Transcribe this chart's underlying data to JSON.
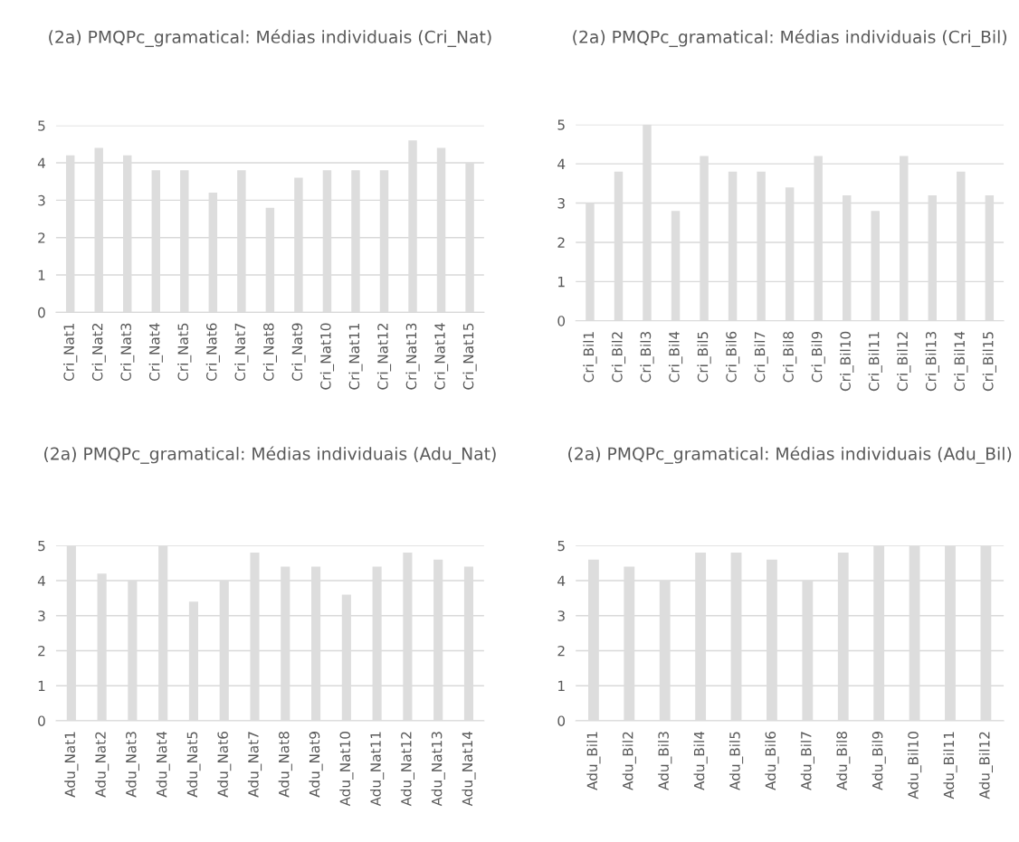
{
  "chart_data": [
    {
      "type": "bar",
      "title": "(2a) PMQPc_gramatical: Médias individuais (Cri_Nat)",
      "categories": [
        "Cri_Nat1",
        "Cri_Nat2",
        "Cri_Nat3",
        "Cri_Nat4",
        "Cri_Nat5",
        "Cri_Nat6",
        "Cri_Nat7",
        "Cri_Nat8",
        "Cri_Nat9",
        "Cri_Nat10",
        "Cri_Nat11",
        "Cri_Nat12",
        "Cri_Nat13",
        "Cri_Nat14",
        "Cri_Nat15"
      ],
      "values": [
        4.2,
        4.4,
        4.2,
        3.8,
        3.8,
        3.2,
        3.8,
        2.8,
        3.6,
        3.8,
        3.8,
        3.8,
        4.6,
        4.4,
        4.0
      ],
      "color": "#dddddd",
      "ylim": [
        0,
        5
      ],
      "yticks": [
        0,
        1,
        2,
        3,
        4,
        5
      ],
      "grid": "y"
    },
    {
      "type": "bar",
      "title": "(2a) PMQPc_gramatical: Médias individuais (Cri_Bil)",
      "categories": [
        "Cri_Bil1",
        "Cri_Bil2",
        "Cri_Bil3",
        "Cri_Bil4",
        "Cri_Bil5",
        "Cri_Bil6",
        "Cri_Bil7",
        "Cri_Bil8",
        "Cri_Bil9",
        "Cri_Bil10",
        "Cri_Bil11",
        "Cri_Bil12",
        "Cri_Bil13",
        "Cri_Bil14",
        "Cri_Bil15"
      ],
      "values": [
        3.0,
        3.8,
        5.0,
        2.8,
        4.2,
        3.8,
        3.8,
        3.4,
        4.2,
        3.2,
        2.8,
        4.2,
        3.2,
        3.8,
        3.2
      ],
      "color": "#dddddd",
      "ylim": [
        0,
        5
      ],
      "yticks": [
        0,
        1,
        2,
        3,
        4,
        5
      ],
      "grid": "y"
    },
    {
      "type": "bar",
      "title": "(2a) PMQPc_gramatical: Médias individuais (Adu_Nat)",
      "categories": [
        "Adu_Nat1",
        "Adu_Nat2",
        "Adu_Nat3",
        "Adu_Nat4",
        "Adu_Nat5",
        "Adu_Nat6",
        "Adu_Nat7",
        "Adu_Nat8",
        "Adu_Nat9",
        "Adu_Nat10",
        "Adu_Nat11",
        "Adu_Nat12",
        "Adu_Nat13",
        "Adu_Nat14"
      ],
      "values": [
        5.0,
        4.2,
        4.0,
        5.0,
        3.4,
        4.0,
        4.8,
        4.4,
        4.4,
        3.6,
        4.4,
        4.8,
        4.6,
        4.4
      ],
      "color": "#dddddd",
      "ylim": [
        0,
        5
      ],
      "yticks": [
        0,
        1,
        2,
        3,
        4,
        5
      ],
      "grid": "y"
    },
    {
      "type": "bar",
      "title": "(2a) PMQPc_gramatical: Médias individuais (Adu_Bil)",
      "categories": [
        "Adu_Bil1",
        "Adu_Bil2",
        "Adu_Bil3",
        "Adu_Bil4",
        "Adu_Bil5",
        "Adu_Bil6",
        "Adu_Bil7",
        "Adu_Bil8",
        "Adu_Bil9",
        "Adu_Bil10",
        "Adu_Bil11",
        "Adu_Bil12"
      ],
      "values": [
        4.6,
        4.4,
        4.0,
        4.8,
        4.8,
        4.6,
        4.0,
        4.8,
        5.0,
        5.0,
        5.0,
        5.0
      ],
      "color": "#dddddd",
      "ylim": [
        0,
        5
      ],
      "yticks": [
        0,
        1,
        2,
        3,
        4,
        5
      ],
      "grid": "y"
    }
  ]
}
